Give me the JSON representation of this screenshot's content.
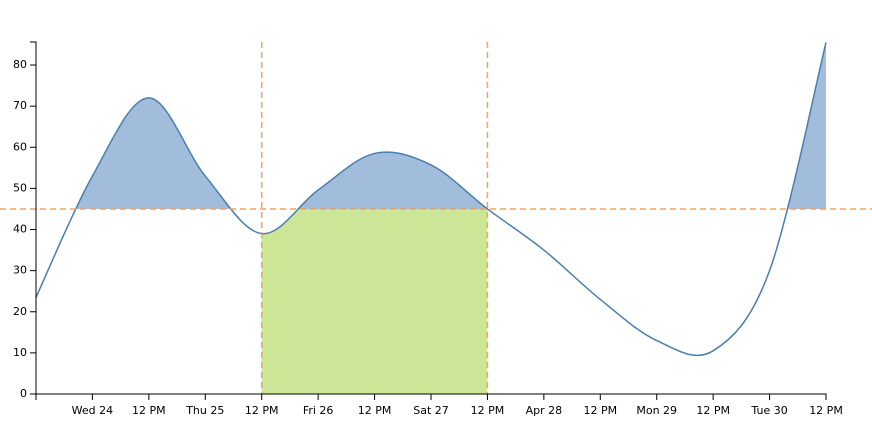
{
  "chart_data": {
    "type": "threshold-area",
    "x": [
      "Apr 23 12:00",
      "Apr 24 00:00",
      "Apr 24 12:00",
      "Apr 25 00:00",
      "Apr 25 12:00",
      "Apr 26 00:00",
      "Apr 26 12:00",
      "Apr 27 00:00",
      "Apr 27 12:00",
      "Apr 28 00:00",
      "Apr 28 12:00",
      "Apr 29 00:00",
      "Apr 29 12:00",
      "Apr 30 00:00",
      "Apr 30 12:00"
    ],
    "values": [
      23.5,
      53,
      72,
      53,
      39,
      49.6,
      58.5,
      55.7,
      45,
      35,
      23,
      13,
      10.5,
      30,
      85.5
    ],
    "threshold": 45,
    "highlight": [
      "Apr 25 12:00",
      "Apr 27 12:00"
    ],
    "line_color": "#4a7eb0",
    "area_color": "#a2bddb",
    "highlight_color": "#cce697",
    "marker_color": "#f5a25a",
    "xlim": [
      "Apr 23 12:00",
      "Apr 30 12:00"
    ],
    "xticks": [
      {
        "value": "Apr 24 00:00",
        "label": "Wed 24"
      },
      {
        "value": "Apr 24 12:00",
        "label": "12 PM"
      },
      {
        "value": "Apr 25 00:00",
        "label": "Thu 25"
      },
      {
        "value": "Apr 25 12:00",
        "label": "12 PM"
      },
      {
        "value": "Apr 26 00:00",
        "label": "Fri 26"
      },
      {
        "value": "Apr 26 12:00",
        "label": "12 PM"
      },
      {
        "value": "Apr 27 00:00",
        "label": "Sat 27"
      },
      {
        "value": "Apr 27 12:00",
        "label": "12 PM"
      },
      {
        "value": "Apr 28 00:00",
        "label": "Apr 28"
      },
      {
        "value": "Apr 28 12:00",
        "label": "12 PM"
      },
      {
        "value": "Apr 29 00:00",
        "label": "Mon 29"
      },
      {
        "value": "Apr 29 12:00",
        "label": "12 PM"
      },
      {
        "value": "Apr 30 00:00",
        "label": "Tue 30"
      },
      {
        "value": "Apr 30 12:00",
        "label": "12 PM"
      }
    ],
    "ylim": [
      0,
      85.6
    ],
    "yticks": [
      0,
      10,
      20,
      30,
      40,
      50,
      60,
      70,
      80
    ]
  }
}
